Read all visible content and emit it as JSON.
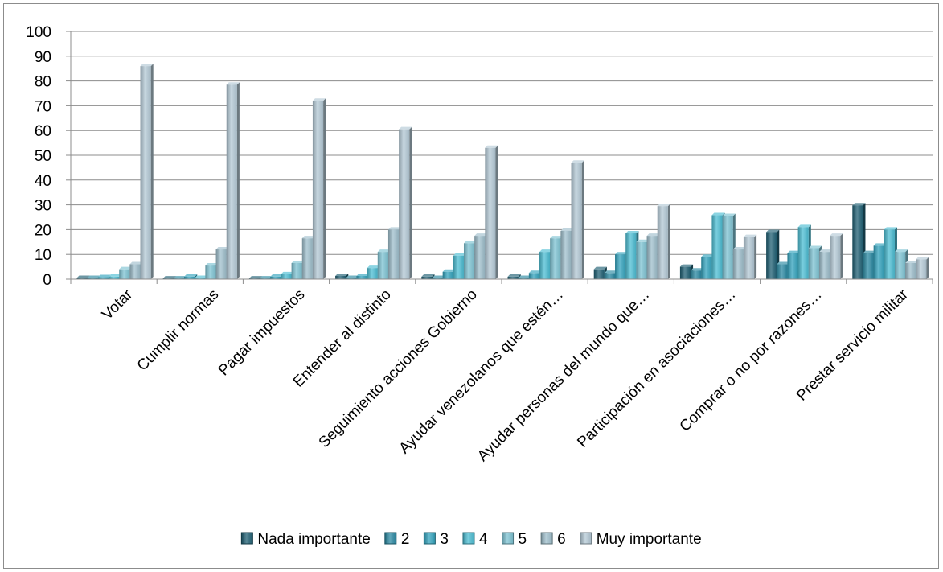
{
  "chart_data": {
    "type": "bar",
    "categories": [
      "Votar",
      "Cumplir normas",
      "Pagar impuestos",
      "Entender al distinto",
      "Seguimiento acciones Gobierno",
      "Ayudar venezolanos que estén…",
      "Ayudar personas del mundo que…",
      "Participación en asociaciones…",
      "Comprar o no por razones…",
      "Prestar servicio militar"
    ],
    "series": [
      {
        "name": "Nada importante",
        "color": "#1f5f73",
        "values": [
          0.5,
          0.3,
          0.3,
          1.3,
          1.0,
          1.0,
          4.0,
          5.0,
          19.0,
          29.8
        ]
      },
      {
        "name": "2",
        "color": "#2b8aa3",
        "values": [
          0.5,
          0.3,
          0.3,
          0.5,
          0.5,
          0.5,
          2.5,
          3.5,
          6.0,
          10.5
        ]
      },
      {
        "name": "3",
        "color": "#33a3bd",
        "values": [
          0.8,
          1.0,
          1.0,
          1.3,
          3.0,
          2.5,
          10.0,
          9.0,
          10.5,
          13.5
        ]
      },
      {
        "name": "4",
        "color": "#4cbdd3",
        "values": [
          1.0,
          0.5,
          2.0,
          4.5,
          9.5,
          11.0,
          18.5,
          25.8,
          21.0,
          20.0
        ]
      },
      {
        "name": "5",
        "color": "#7ec3d3",
        "values": [
          4.0,
          5.5,
          6.5,
          11.0,
          14.5,
          16.5,
          15.0,
          25.5,
          12.5,
          11.0
        ]
      },
      {
        "name": "6",
        "color": "#9fbfcc",
        "values": [
          6.0,
          12.0,
          16.5,
          20.0,
          17.5,
          19.5,
          17.5,
          12.0,
          11.0,
          6.5
        ]
      },
      {
        "name": "Muy importante",
        "color": "#b4c9d6",
        "values": [
          86.0,
          78.5,
          72.0,
          60.5,
          53.0,
          47.0,
          29.5,
          17.0,
          17.5,
          8.0
        ]
      }
    ],
    "title": "",
    "xlabel": "",
    "ylabel": "",
    "ylim": [
      0,
      100
    ],
    "yticks": [
      0,
      10,
      20,
      30,
      40,
      50,
      60,
      70,
      80,
      90,
      100
    ],
    "grid": true,
    "legend_position": "bottom"
  }
}
